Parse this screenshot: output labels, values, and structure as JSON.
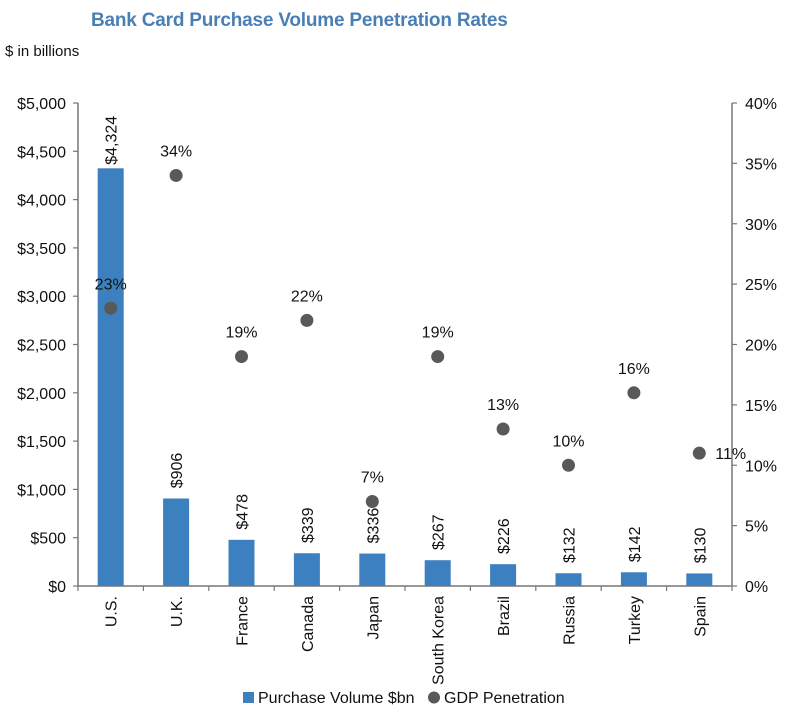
{
  "title": "Bank Card Purchase Volume Penetration Rates",
  "unit_label": "$ in billions",
  "colors": {
    "bar": "#3d80bf",
    "point": "#595959",
    "axis": "#777777",
    "title": "#4a7fb5"
  },
  "chart_data": {
    "type": "bar",
    "title": "Bank Card Purchase Volume Penetration Rates",
    "ylabel": "$ in billions",
    "categories": [
      "U.S.",
      "U.K.",
      "France",
      "Canada",
      "Japan",
      "South Korea",
      "Brazil",
      "Russia",
      "Turkey",
      "Spain"
    ],
    "series": [
      {
        "name": "Purchase Volume $bn",
        "type": "bar",
        "axis": "left",
        "values": [
          4324,
          906,
          478,
          339,
          336,
          267,
          226,
          132,
          142,
          130
        ],
        "labels": [
          "$4,324",
          "$906",
          "$478",
          "$339",
          "$336",
          "$267",
          "$226",
          "$132",
          "$142",
          "$130"
        ]
      },
      {
        "name": "GDP Penetration",
        "type": "scatter",
        "axis": "right",
        "values": [
          23,
          34,
          19,
          22,
          7,
          19,
          13,
          10,
          16,
          11
        ],
        "labels": [
          "23%",
          "34%",
          "19%",
          "22%",
          "7%",
          "19%",
          "13%",
          "10%",
          "16%",
          "11%"
        ]
      }
    ],
    "ylim": [
      0,
      5000
    ],
    "y_ticks": [
      "$0",
      "$500",
      "$1,000",
      "$1,500",
      "$2,000",
      "$2,500",
      "$3,000",
      "$3,500",
      "$4,000",
      "$4,500",
      "$5,000"
    ],
    "y2lim": [
      0,
      40
    ],
    "y2_ticks": [
      "0%",
      "5%",
      "10%",
      "15%",
      "20%",
      "25%",
      "30%",
      "35%",
      "40%"
    ],
    "grid": false,
    "legend_position": "bottom"
  }
}
